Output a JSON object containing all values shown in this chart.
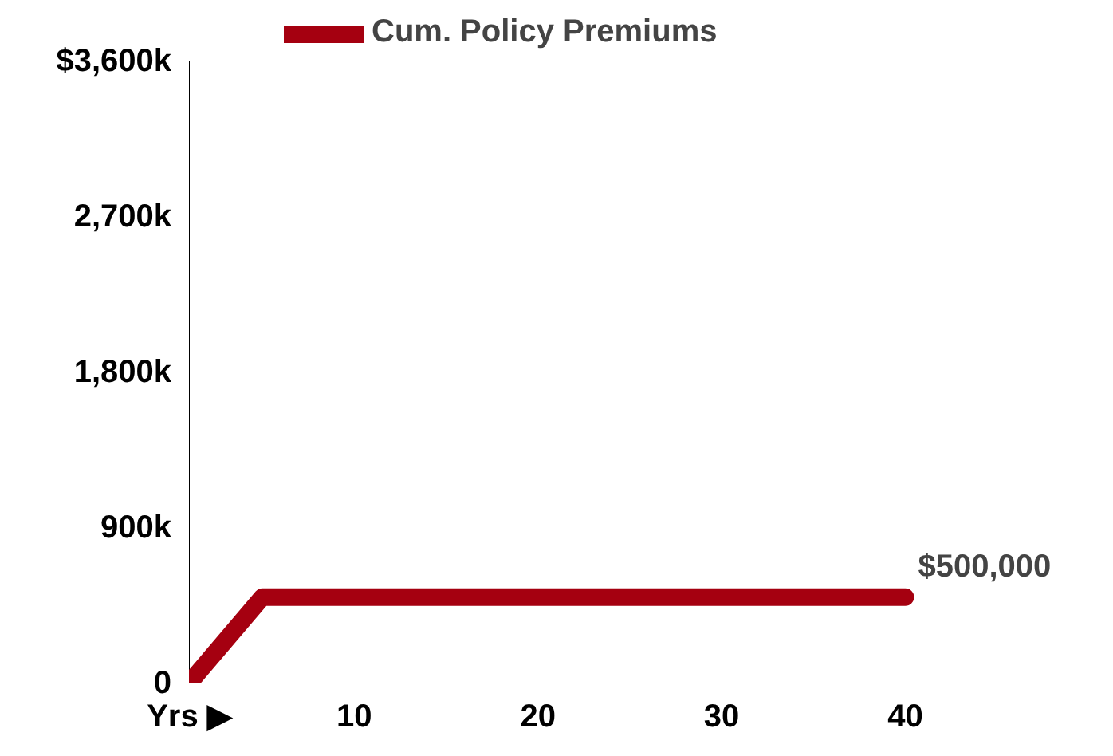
{
  "chart_data": {
    "type": "line",
    "xlabel": "Yrs ▶",
    "x": [
      1,
      5,
      40
    ],
    "series": [
      {
        "name": "Cum. Policy Premiums",
        "color": "#a50010",
        "values": [
          0,
          500000,
          500000
        ]
      }
    ],
    "xlim": [
      1,
      40.5
    ],
    "ylim": [
      0,
      3600000
    ],
    "xticks": [
      10,
      20,
      30,
      40
    ],
    "yticks": [
      {
        "value": 0,
        "label": "0"
      },
      {
        "value": 900000,
        "label": "900k"
      },
      {
        "value": 1800000,
        "label": "1,800k"
      },
      {
        "value": 2700000,
        "label": "2,700k"
      },
      {
        "value": 3600000,
        "label": "$3,600k"
      }
    ],
    "annotations": [
      {
        "text": "$500,000",
        "x": 40,
        "y": 500000
      }
    ],
    "grid": false,
    "legend": "top",
    "marker": "none",
    "line_style": "solid"
  }
}
